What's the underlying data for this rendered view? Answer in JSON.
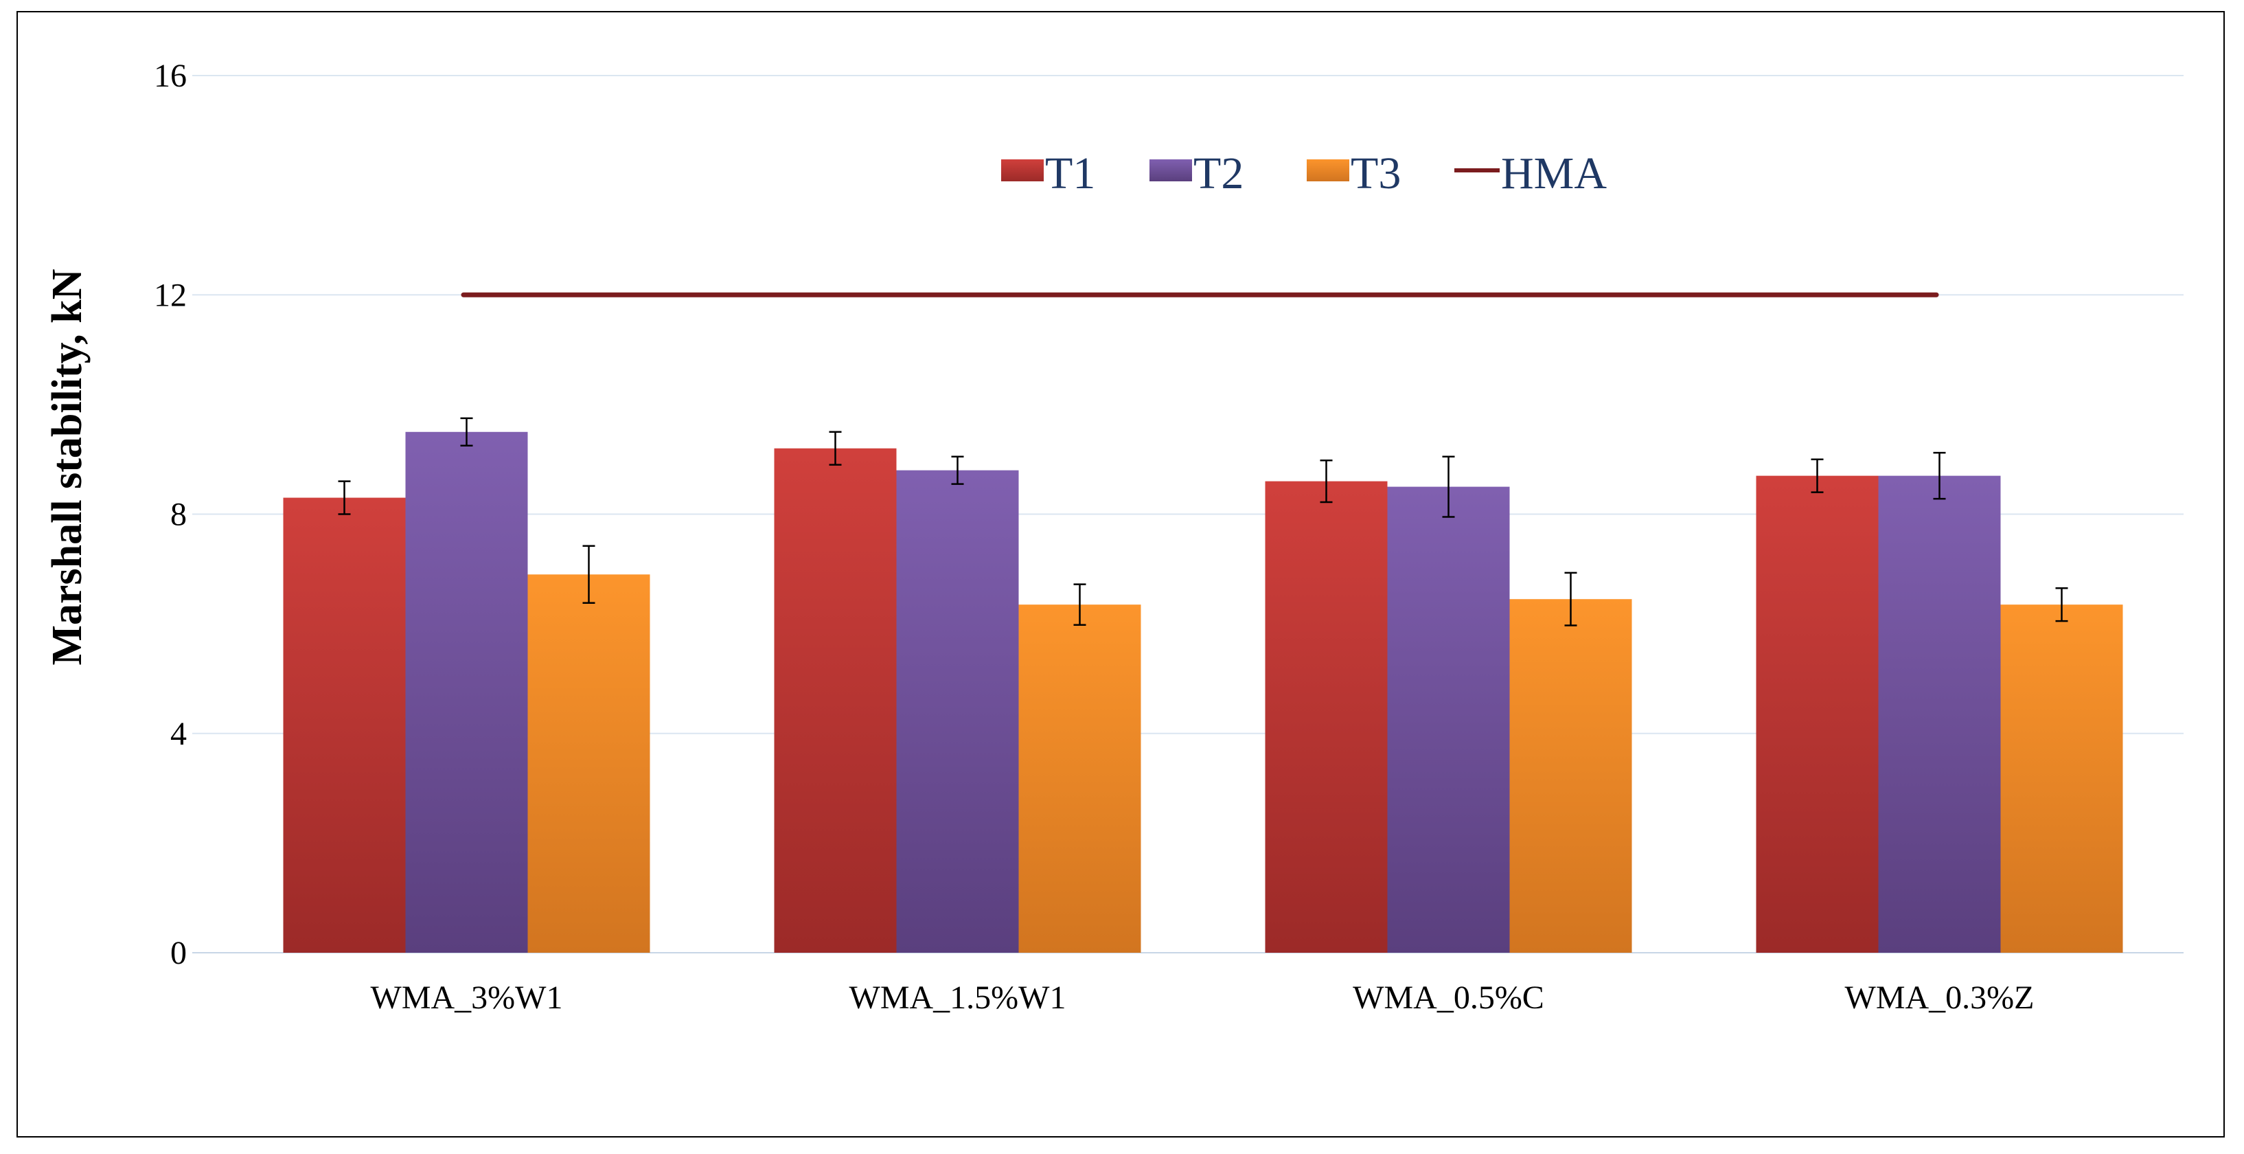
{
  "chart_data": {
    "type": "bar",
    "title": "",
    "xlabel": "",
    "ylabel": "Marshall stability, kN",
    "ylim": [
      0,
      16
    ],
    "yticks": [
      "0",
      "4",
      "8",
      "12",
      "16"
    ],
    "grid": true,
    "legend_position": "top-center",
    "categories": [
      "WMA_3%W1",
      "WMA_1.5%W1",
      "WMA_0.5%C",
      "WMA_0.3%Z"
    ],
    "series": [
      {
        "name": "T1",
        "color_top": "#d0403c",
        "color_bottom": "#9c2a28",
        "values": [
          8.3,
          9.2,
          8.6,
          8.7
        ],
        "errors": [
          0.3,
          0.3,
          0.38,
          0.3
        ]
      },
      {
        "name": "T2",
        "color_top": "#8060b0",
        "color_bottom": "#5a3f7e",
        "values": [
          9.5,
          8.8,
          8.5,
          8.7
        ],
        "errors": [
          0.25,
          0.25,
          0.55,
          0.42
        ]
      },
      {
        "name": "T3",
        "color_top": "#fc952c",
        "color_bottom": "#d27520",
        "values": [
          6.9,
          6.35,
          6.45,
          6.35
        ],
        "errors": [
          0.52,
          0.37,
          0.48,
          0.3
        ]
      }
    ],
    "reference_line": {
      "name": "HMA",
      "value": 12.0,
      "color": "#7b1c1e"
    }
  }
}
